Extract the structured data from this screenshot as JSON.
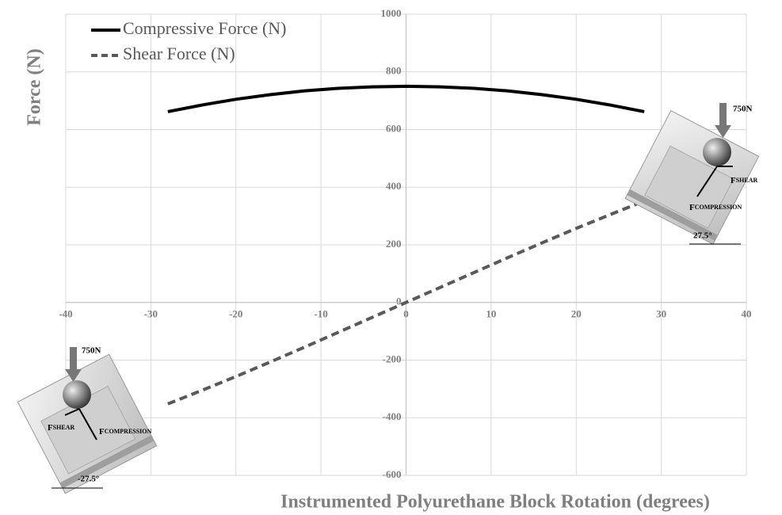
{
  "chart_data": {
    "type": "line",
    "x_label": "Instrumented Polyurethane Block Rotation (degrees)",
    "y_label": "Force (N)",
    "x": [
      -28,
      -24,
      -20,
      -16,
      -12,
      -8,
      -4,
      0,
      4,
      8,
      12,
      16,
      20,
      24,
      28
    ],
    "series": [
      {
        "name": "Compressive Force (N)",
        "color": "#000000",
        "dash": false,
        "values": [
          662,
          685,
          705,
          721,
          734,
          743,
          748,
          750,
          748,
          743,
          734,
          721,
          705,
          685,
          662
        ]
      },
      {
        "name": "Shear Force (N)",
        "color": "#595959",
        "dash": true,
        "values": [
          -352,
          -305,
          -257,
          -207,
          -156,
          -104,
          -52,
          0,
          52,
          104,
          156,
          207,
          257,
          305,
          352
        ]
      }
    ],
    "xlim": [
      -40,
      40
    ],
    "xticks": [
      -40,
      -30,
      -20,
      -10,
      0,
      10,
      20,
      30,
      40
    ],
    "ylim": [
      -600,
      1000
    ],
    "yticks": [
      -600,
      -400,
      -200,
      0,
      200,
      400,
      600,
      800,
      1000
    ],
    "grid": true,
    "legend": "top-left",
    "insets": [
      {
        "load": "750N",
        "shear": [
          "F",
          "SHEAR"
        ],
        "compression": [
          "F",
          "COMPRESSION"
        ],
        "angle": "27.5°"
      },
      {
        "load": "750N",
        "shear": [
          "F",
          "SHEAR"
        ],
        "compression": [
          "F",
          "COMPRESSION"
        ],
        "angle": "-27.5°"
      }
    ]
  }
}
